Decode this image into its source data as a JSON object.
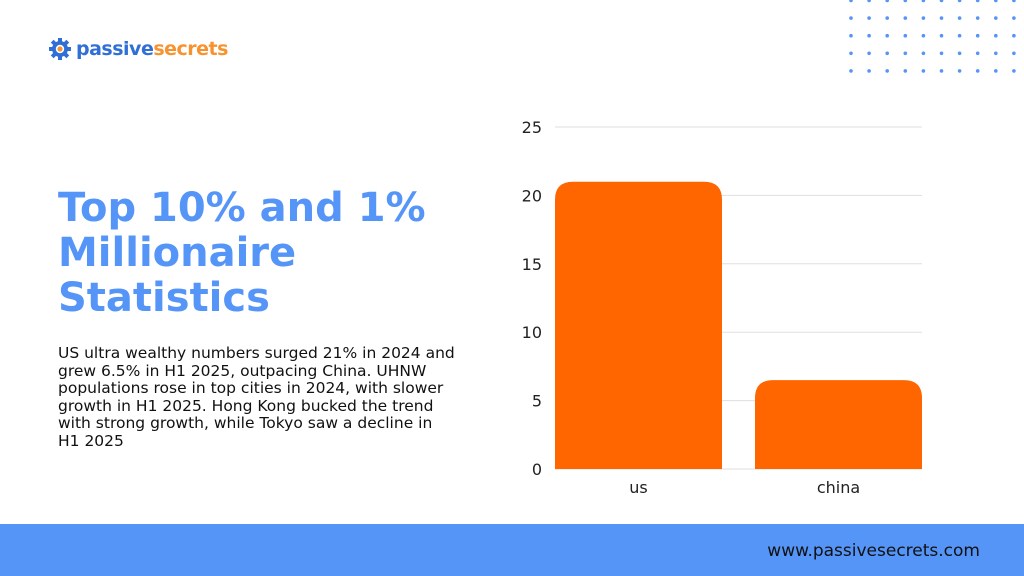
{
  "brand": {
    "part1": "passive",
    "part2": "secrets",
    "icon": "gear-icon"
  },
  "headline": "Top 10% and 1% Millionaire Statistics",
  "description": "US ultra wealthy numbers surged 21% in 2024 and grew 6.5% in H1 2025, outpacing China. UHNW populations rose in top cities in 2024, with slower growth in H1 2025. Hong Kong bucked the trend with strong growth, while Tokyo saw a decline in H1 2025",
  "footer": {
    "url": "www.passivesecrets.com"
  },
  "colors": {
    "accent": "#5595f7",
    "bar": "#ff6600",
    "logo_blue": "#2f6fd6",
    "logo_orange": "#f7932f"
  },
  "chart_data": {
    "type": "bar",
    "categories": [
      "us",
      "china"
    ],
    "values": [
      21,
      6.5
    ],
    "title": "",
    "xlabel": "",
    "ylabel": "",
    "ylim": [
      0,
      25
    ],
    "yticks": [
      "0",
      "5",
      "10",
      "15",
      "20",
      "25"
    ],
    "grid": true,
    "legend": "none"
  }
}
